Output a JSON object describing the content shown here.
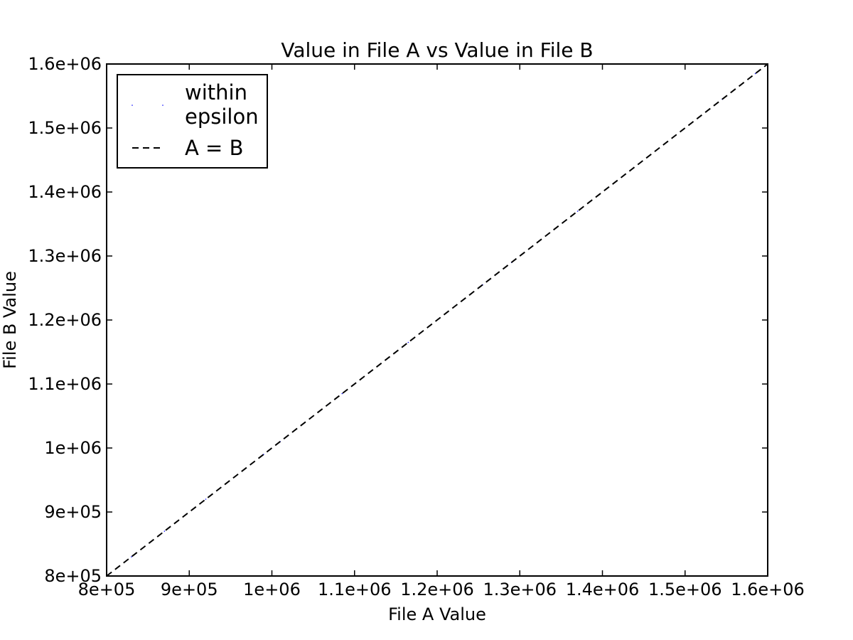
{
  "chart_data": {
    "type": "scatter",
    "title": "Value in File A vs Value in File B",
    "xlabel": "File A Value",
    "ylabel": "File B Value",
    "xlim": [
      800000,
      1600000
    ],
    "ylim": [
      800000,
      1600000
    ],
    "x_ticks": [
      {
        "value": 800000,
        "label": "8e+05"
      },
      {
        "value": 900000,
        "label": "9e+05"
      },
      {
        "value": 1000000,
        "label": "1e+06"
      },
      {
        "value": 1100000,
        "label": "1.1e+06"
      },
      {
        "value": 1200000,
        "label": "1.2e+06"
      },
      {
        "value": 1300000,
        "label": "1.3e+06"
      },
      {
        "value": 1400000,
        "label": "1.4e+06"
      },
      {
        "value": 1500000,
        "label": "1.5e+06"
      },
      {
        "value": 1600000,
        "label": "1.6e+06"
      }
    ],
    "y_ticks": [
      {
        "value": 800000,
        "label": "8e+05"
      },
      {
        "value": 900000,
        "label": "9e+05"
      },
      {
        "value": 1000000,
        "label": "1e+06"
      },
      {
        "value": 1100000,
        "label": "1.1e+06"
      },
      {
        "value": 1200000,
        "label": "1.2e+06"
      },
      {
        "value": 1300000,
        "label": "1.3e+06"
      },
      {
        "value": 1400000,
        "label": "1.4e+06"
      },
      {
        "value": 1500000,
        "label": "1.5e+06"
      },
      {
        "value": 1600000,
        "label": "1.6e+06"
      }
    ],
    "grid": false,
    "legend_position": "top-left",
    "series": [
      {
        "name": "within epsilon",
        "legend_lines": [
          "within",
          "epsilon"
        ],
        "marker": "point",
        "color": "#0000ff",
        "points": [
          [
            830000,
            830000
          ],
          [
            845000,
            845000
          ],
          [
            870000,
            870000
          ],
          [
            905000,
            905000
          ],
          [
            920000,
            920000
          ],
          [
            955000,
            955000
          ],
          [
            990000,
            990000
          ],
          [
            1010000,
            1010000
          ],
          [
            1070000,
            1070000
          ],
          [
            1085000,
            1085000
          ],
          [
            1140000,
            1140000
          ],
          [
            1165000,
            1165000
          ],
          [
            1210000,
            1210000
          ],
          [
            1255000,
            1255000
          ],
          [
            1290000,
            1290000
          ],
          [
            1325000,
            1325000
          ],
          [
            1370000,
            1370000
          ],
          [
            1405000,
            1405000
          ],
          [
            1455000,
            1455000
          ],
          [
            1505000,
            1505000
          ],
          [
            1545000,
            1545000
          ],
          [
            1585000,
            1585000
          ]
        ]
      },
      {
        "name": "A = B",
        "legend_lines": [
          "A = B"
        ],
        "style": "dashed-line",
        "color": "#000000",
        "points": [
          [
            800000,
            800000
          ],
          [
            1600000,
            1600000
          ]
        ]
      }
    ]
  }
}
